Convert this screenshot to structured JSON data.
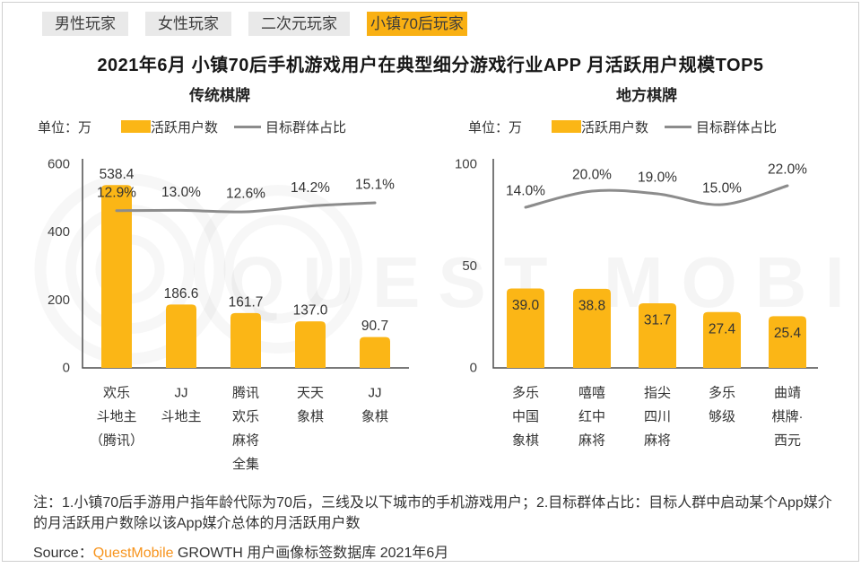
{
  "tabs": [
    {
      "label": "男性玩家",
      "active": false
    },
    {
      "label": "女性玩家",
      "active": false
    },
    {
      "label": "二次元玩家",
      "active": false
    },
    {
      "label": "小镇70后玩家",
      "active": true
    }
  ],
  "title": "2021年6月 小镇70后手机游戏用户在典型细分游戏行业APP 月活跃用户规模TOP5",
  "watermark": {
    "text": "QUEST MOBILE"
  },
  "colors": {
    "bar": "#fbb616",
    "line": "#8c8c8c",
    "tab_active_bg": "#f9b013",
    "tab_bg": "#e9e9e9",
    "brand_orange": "#f7941d"
  },
  "chart_data": [
    {
      "type": "bar",
      "title": "传统棋牌",
      "unit_label": "单位：万",
      "legend": [
        "活跃用户数",
        "目标群体占比"
      ],
      "legend_position": "top",
      "grid": false,
      "ylim": [
        0,
        600
      ],
      "yticks": [
        0,
        200,
        400,
        600
      ],
      "categories": [
        "欢乐斗地主（腾讯）",
        "JJ斗地主",
        "腾讯欢乐麻将全集",
        "天天象棋",
        "JJ象棋"
      ],
      "category_lines": [
        [
          "欢乐",
          "斗地主",
          "（腾讯）"
        ],
        [
          "JJ",
          "斗地主"
        ],
        [
          "腾讯",
          "欢乐",
          "麻将",
          "全集"
        ],
        [
          "天天",
          "象棋"
        ],
        [
          "JJ",
          "象棋"
        ]
      ],
      "series": [
        {
          "name": "活跃用户数",
          "type": "bar",
          "unit": "万",
          "values": [
            538.4,
            186.6,
            161.7,
            137.0,
            90.7
          ]
        },
        {
          "name": "目标群体占比",
          "type": "line",
          "unit": "%",
          "values": [
            12.9,
            13.0,
            12.6,
            14.2,
            15.1
          ]
        }
      ],
      "value_labels_position": "above"
    },
    {
      "type": "bar",
      "title": "地方棋牌",
      "unit_label": "单位：万",
      "legend": [
        "活跃用户数",
        "目标群体占比"
      ],
      "legend_position": "top",
      "grid": false,
      "ylim": [
        0,
        100
      ],
      "yticks": [
        0,
        50,
        100
      ],
      "categories": [
        "多乐中国象棋",
        "嘻嘻红中麻将",
        "指尖四川麻将",
        "多乐够级",
        "曲靖棋牌·西元"
      ],
      "category_lines": [
        [
          "多乐",
          "中国",
          "象棋"
        ],
        [
          "嘻嘻",
          "红中",
          "麻将"
        ],
        [
          "指尖",
          "四川",
          "麻将"
        ],
        [
          "多乐",
          "够级"
        ],
        [
          "曲靖",
          "棋牌·",
          "西元"
        ]
      ],
      "series": [
        {
          "name": "活跃用户数",
          "type": "bar",
          "unit": "万",
          "values": [
            39.0,
            38.8,
            31.7,
            27.4,
            25.4
          ]
        },
        {
          "name": "目标群体占比",
          "type": "line",
          "unit": "%",
          "values": [
            14.0,
            20.0,
            19.0,
            15.0,
            22.0
          ]
        }
      ],
      "value_labels_position": "inside"
    }
  ],
  "note": "注：1.小镇70后手游用户指年龄代际为70后，三线及以下城市的手机游戏用户；2.目标群体占比：目标人群中启动某个App媒介的月活跃用户数除以该App媒介总体的月活跃用户数",
  "source": {
    "prefix": "Source：",
    "brand": "QuestMobile",
    "suffix": " GROWTH 用户画像标签数据库 2021年6月"
  }
}
